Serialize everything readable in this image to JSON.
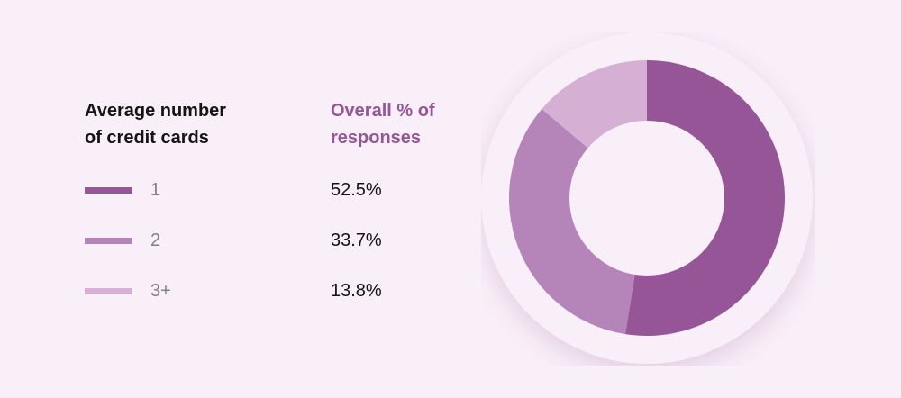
{
  "legend": {
    "header_left": "Average number of credit cards",
    "header_left_line1": "Average number",
    "header_left_line2": "of credit cards",
    "header_right_line1": "Overall % of",
    "header_right_line2": "responses",
    "rows": [
      {
        "label": "1",
        "value": "52.5%",
        "color": "#965597"
      },
      {
        "label": "2",
        "value": "33.7%",
        "color": "#b584b8"
      },
      {
        "label": "3+",
        "value": "13.8%",
        "color": "#d5b0d4"
      }
    ]
  },
  "colors": {
    "background": "#f9eff8",
    "header_accent": "#955597",
    "halo": "#f8eff8"
  },
  "chart_data": {
    "type": "pie",
    "subtype": "donut",
    "title": "Average number of credit cards",
    "value_header": "Overall % of responses",
    "categories": [
      "1",
      "2",
      "3+"
    ],
    "values": [
      52.5,
      33.7,
      13.8
    ],
    "colors": [
      "#965597",
      "#b584b8",
      "#d5b0d4"
    ],
    "start_angle_deg": 0,
    "direction": "clockwise",
    "legend_position": "left"
  }
}
